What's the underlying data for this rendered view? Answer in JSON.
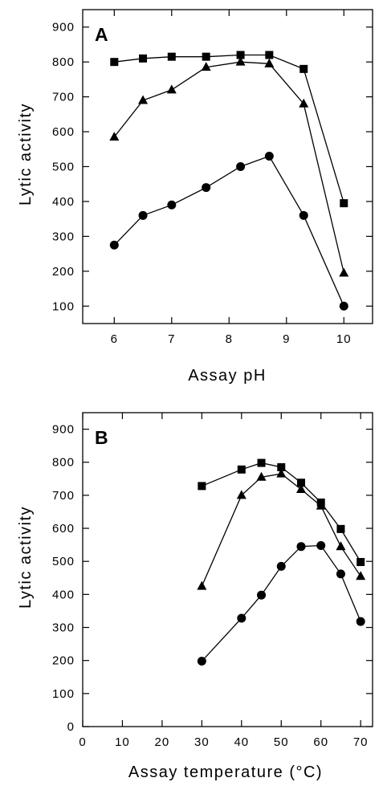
{
  "chart_data": [
    {
      "type": "line",
      "panel_label": "A",
      "xlabel": "Assay pH",
      "ylabel": "Lytic activity",
      "xlim": [
        5.45,
        10.5
      ],
      "ylim": [
        50,
        950
      ],
      "xticks": [
        6,
        7,
        8,
        9,
        10
      ],
      "yticks": [
        100,
        200,
        300,
        400,
        500,
        600,
        700,
        800,
        900
      ],
      "grid": false,
      "series": [
        {
          "marker": "square",
          "x": [
            6,
            6.5,
            7,
            7.6,
            8.2,
            8.7,
            9.3,
            10
          ],
          "values": [
            800,
            810,
            815,
            815,
            820,
            820,
            780,
            395
          ]
        },
        {
          "marker": "triangle",
          "x": [
            6,
            6.5,
            7,
            7.6,
            8.2,
            8.7,
            9.3,
            10
          ],
          "values": [
            585,
            690,
            720,
            785,
            800,
            795,
            680,
            195
          ]
        },
        {
          "marker": "circle",
          "x": [
            6,
            6.5,
            7,
            7.6,
            8.2,
            8.7,
            9.3,
            10
          ],
          "values": [
            275,
            360,
            390,
            440,
            500,
            530,
            360,
            100
          ]
        }
      ]
    },
    {
      "type": "line",
      "panel_label": "B",
      "xlabel": "Assay temperature (°C)",
      "ylabel": "Lytic activity",
      "xlim": [
        0,
        73
      ],
      "ylim": [
        0,
        950
      ],
      "xticks": [
        0,
        10,
        20,
        30,
        40,
        50,
        60,
        70
      ],
      "yticks": [
        0,
        100,
        200,
        300,
        400,
        500,
        600,
        700,
        800,
        900
      ],
      "grid": false,
      "series": [
        {
          "marker": "square",
          "x": [
            30,
            40,
            45,
            50,
            55,
            60,
            65,
            70
          ],
          "values": [
            728,
            778,
            798,
            785,
            738,
            678,
            598,
            498
          ]
        },
        {
          "marker": "triangle",
          "x": [
            30,
            40,
            45,
            50,
            55,
            60,
            65,
            70
          ],
          "values": [
            425,
            700,
            755,
            765,
            718,
            668,
            545,
            455
          ]
        },
        {
          "marker": "circle",
          "x": [
            30,
            40,
            45,
            50,
            55,
            60,
            65,
            70
          ],
          "values": [
            198,
            328,
            398,
            485,
            545,
            548,
            462,
            318
          ]
        }
      ]
    }
  ]
}
